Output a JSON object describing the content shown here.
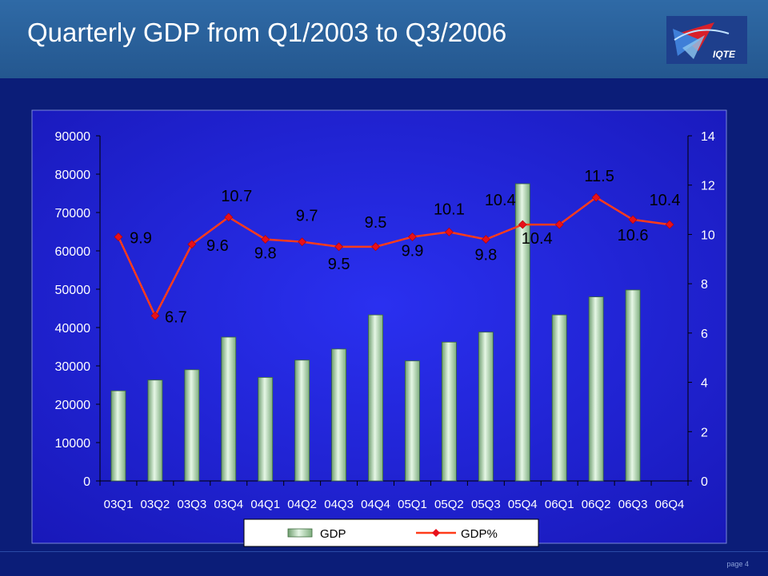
{
  "slide": {
    "title": "Quarterly GDP from Q1/2003 to Q3/2006",
    "logo_text": "IQTE",
    "page_label": "page 4"
  },
  "colors": {
    "bar_fill": "#c8e6c8",
    "line": "#ff3b1a",
    "marker": "#e8101a",
    "plot_bg": "#1f22d8",
    "text": "#ffffff",
    "label_text": "#000000"
  },
  "chart_data": {
    "type": "bar",
    "title": "",
    "categories": [
      "03Q1",
      "03Q2",
      "03Q3",
      "03Q4",
      "04Q1",
      "04Q2",
      "04Q3",
      "04Q4",
      "05Q1",
      "05Q2",
      "05Q3",
      "05Q4",
      "06Q1",
      "06Q2",
      "06Q3",
      "06Q4"
    ],
    "series": [
      {
        "name": "GDP",
        "type": "bar",
        "axis": "left",
        "values": [
          23500,
          26300,
          29000,
          37500,
          27000,
          31500,
          34400,
          43300,
          31300,
          36200,
          38800,
          77500,
          43300,
          48000,
          49800,
          null
        ]
      },
      {
        "name": "GDP%",
        "type": "line",
        "axis": "right",
        "values": [
          9.9,
          6.7,
          9.6,
          10.7,
          9.8,
          9.7,
          9.5,
          9.5,
          9.9,
          10.1,
          9.8,
          10.4,
          10.4,
          11.5,
          10.6,
          10.4
        ]
      }
    ],
    "data_labels": [
      "9.9",
      "6.7",
      "9.6",
      "10.7",
      "9.8",
      "9.7",
      "9.5",
      "9.5",
      "9.9",
      "10.1",
      "9.8",
      "10.4",
      "10.4",
      "11.5",
      "10.6",
      "10.4"
    ],
    "y_left": {
      "ylim": [
        0,
        90000
      ],
      "ticks": [
        "0",
        "10000",
        "20000",
        "30000",
        "40000",
        "50000",
        "60000",
        "70000",
        "80000",
        "90000"
      ]
    },
    "y_right": {
      "ylim": [
        0,
        14
      ],
      "ticks": [
        "0",
        "2",
        "4",
        "6",
        "8",
        "10",
        "12",
        "14"
      ]
    },
    "grid": false,
    "legend": {
      "placement": "bottom",
      "entries": [
        "GDP",
        "GDP%"
      ]
    }
  }
}
